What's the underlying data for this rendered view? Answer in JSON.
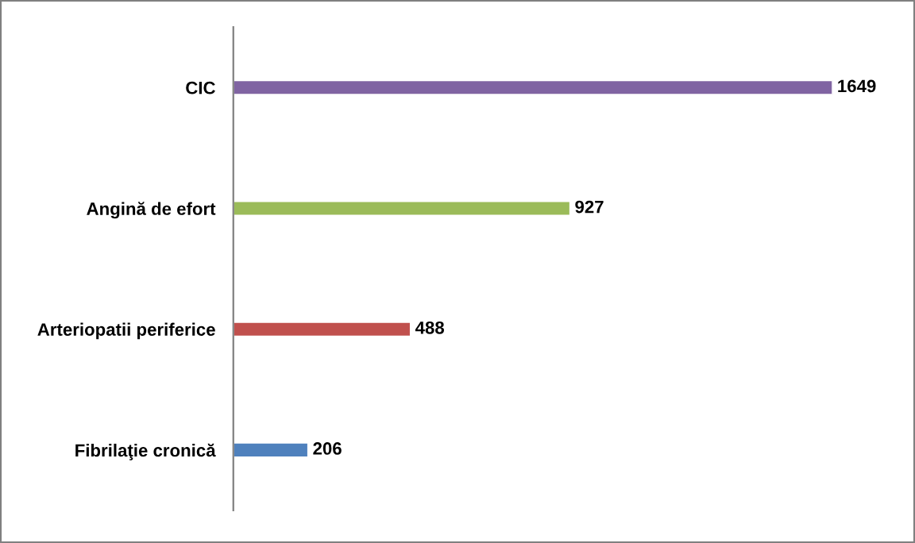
{
  "chart_data": {
    "type": "bar",
    "orientation": "horizontal",
    "categories": [
      "CIC",
      "Angină de efort",
      "Arteriopatii periferice",
      "Fibrilaţie cronică"
    ],
    "values": [
      1649,
      927,
      488,
      206
    ],
    "colors": [
      "#8064a2",
      "#9bbb59",
      "#c0504d",
      "#4f81bd"
    ],
    "data_labels": true,
    "grid": false,
    "legend": false
  }
}
